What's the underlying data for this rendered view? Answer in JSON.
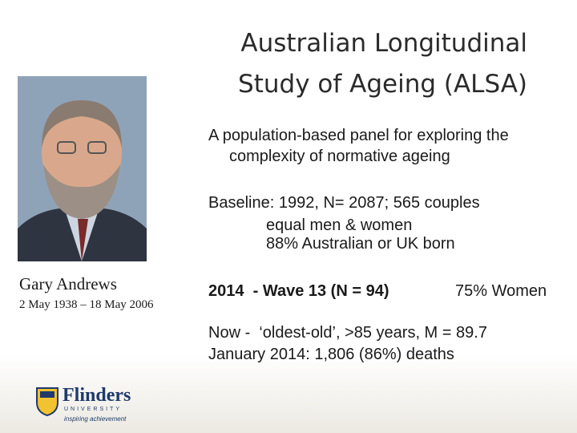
{
  "header": {
    "title": [
      "Australian Longitudinal",
      "Study of Ageing (ALSA)"
    ]
  },
  "description": [
    "A population-based panel for exploring the",
    "complexity of normative ageing"
  ],
  "baseline": [
    "Baseline: 1992, N= 2087; 565 couples",
    "equal men & women",
    "88% Australian or UK born"
  ],
  "wave": {
    "label": "2014  - Wave 13 (N = 94)",
    "women": "75% Women"
  },
  "now": [
    "Now -  ‘oldest-old’, >85 years, M = 89.7",
    "January 2014: 1,806 (86%) deaths"
  ],
  "person": {
    "name": "Gary Andrews",
    "dates": "2 May 1938 – 18 May 2006"
  },
  "logo": {
    "name": "Flinders",
    "sub": "UNIVERSITY",
    "tagline": "inspiring achievement"
  }
}
